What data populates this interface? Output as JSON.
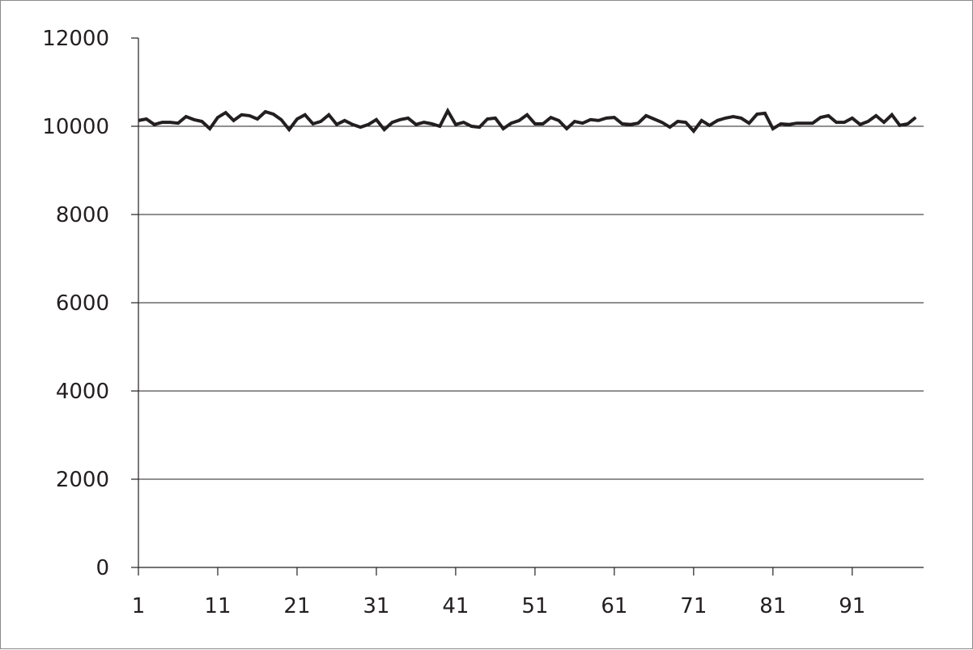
{
  "chart_data": {
    "type": "line",
    "title": "",
    "xlabel": "",
    "ylabel": "",
    "xlim": [
      1,
      100
    ],
    "ylim": [
      0,
      12000
    ],
    "grid": "horizontal",
    "legend": "none",
    "line_color": "#231f20",
    "x_ticks": [
      "1",
      "11",
      "21",
      "31",
      "41",
      "51",
      "61",
      "71",
      "81",
      "91"
    ],
    "y_ticks": [
      "0",
      "2000",
      "4000",
      "6000",
      "8000",
      "10000",
      "12000"
    ],
    "series": [
      {
        "values": [
          10130,
          10165,
          10040,
          10090,
          10090,
          10070,
          10220,
          10150,
          10110,
          9945,
          10200,
          10310,
          10130,
          10260,
          10240,
          10165,
          10330,
          10275,
          10150,
          9925,
          10165,
          10260,
          10055,
          10110,
          10260,
          10040,
          10130,
          10040,
          9980,
          10040,
          10150,
          9925,
          10090,
          10150,
          10185,
          10040,
          10090,
          10055,
          10000,
          10350,
          10040,
          10090,
          10000,
          9980,
          10165,
          10185,
          9945,
          10070,
          10130,
          10260,
          10055,
          10055,
          10200,
          10130,
          9945,
          10110,
          10070,
          10150,
          10130,
          10185,
          10200,
          10055,
          10040,
          10070,
          10240,
          10165,
          10090,
          9980,
          10110,
          10090,
          9890,
          10130,
          10020,
          10130,
          10185,
          10220,
          10185,
          10070,
          10275,
          10295,
          9945,
          10055,
          10040,
          10070,
          10070,
          10070,
          10200,
          10240,
          10090,
          10090,
          10185,
          10040,
          10110,
          10240,
          10090,
          10260,
          10020,
          10055,
          10200
        ]
      }
    ]
  }
}
